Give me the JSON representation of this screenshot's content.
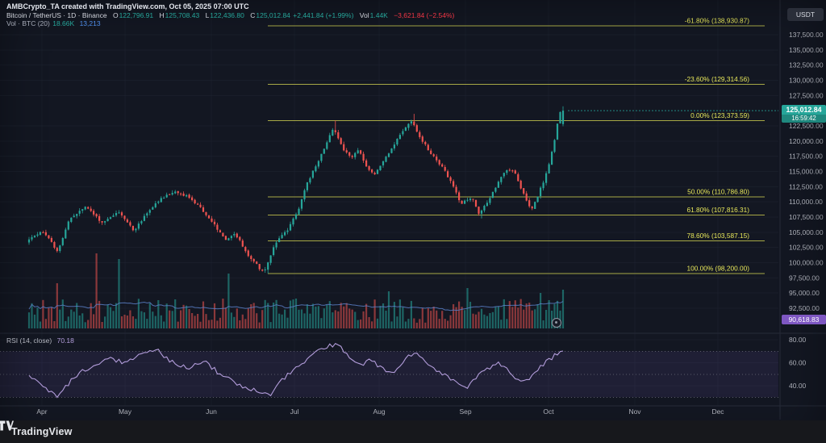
{
  "header": {
    "watermark_line": "AMBCrypto_TA created with TradingView.com, Oct 05, 2025 07:00 UTC",
    "symbol_title": "Bitcoin / TetherUS · 1D · Binance",
    "ohlc": {
      "o_label": "O",
      "o": "122,796.91",
      "h_label": "H",
      "h": "125,708.43",
      "l_label": "L",
      "l": "122,436.80",
      "c_label": "C",
      "c": "125,012.84",
      "change": "+2,441.84 (+1.99%)"
    },
    "vol_label": "Vol",
    "vol_value": "1.44K",
    "vol_change": "−3,621.84 (−2.54%)",
    "volume_indicator_line": {
      "label": "Vol · BTC (20)",
      "value1": "18.66K",
      "value2": "13,213"
    }
  },
  "price_scale": {
    "currency_button": "USDT",
    "ticks": [
      {
        "label": "137,500.00",
        "value": 137500
      },
      {
        "label": "135,000.00",
        "value": 135000
      },
      {
        "label": "132,500.00",
        "value": 132500
      },
      {
        "label": "130,000.00",
        "value": 130000
      },
      {
        "label": "127,500.00",
        "value": 127500
      },
      {
        "label": "122,500.00",
        "value": 122500
      },
      {
        "label": "120,000.00",
        "value": 120000
      },
      {
        "label": "117,500.00",
        "value": 117500
      },
      {
        "label": "115,000.00",
        "value": 115000
      },
      {
        "label": "112,500.00",
        "value": 112500
      },
      {
        "label": "110,000.00",
        "value": 110000
      },
      {
        "label": "107,500.00",
        "value": 107500
      },
      {
        "label": "105,000.00",
        "value": 105000
      },
      {
        "label": "102,500.00",
        "value": 102500
      },
      {
        "label": "100,000.00",
        "value": 100000
      },
      {
        "label": "97,500.00",
        "value": 97500
      },
      {
        "label": "95,000.00",
        "value": 95000
      },
      {
        "label": "92,500.00",
        "value": 92500
      }
    ],
    "last_price_badge": {
      "price": "125,012.84",
      "countdown": "16:59:42",
      "color": "#26a69a"
    },
    "indicator_badge": {
      "value": "90,618.83",
      "color": "#7e57c2"
    }
  },
  "rsi_pane": {
    "legend_label": "RSI (14, close)",
    "legend_value": "70.18",
    "ticks": [
      {
        "label": "80.00",
        "value": 80
      },
      {
        "label": "60.00",
        "value": 60
      },
      {
        "label": "40.00",
        "value": 40
      }
    ]
  },
  "time_axis": {
    "months": [
      "Apr",
      "May",
      "Jun",
      "Jul",
      "Aug",
      "Sep",
      "Oct",
      "Nov",
      "Dec"
    ]
  },
  "footer": {
    "brand": "TradingView"
  },
  "chart_data": {
    "type": "candlestick",
    "title": "Bitcoin / TetherUS 1D (Binance) with Fibonacci retracement, volume and RSI",
    "price_axis": {
      "min": 90000,
      "max": 139500,
      "tick_step": 2500,
      "currency": "USDT"
    },
    "last_price": 125012.84,
    "last_candle": {
      "o": 122796.91,
      "h": 125708.43,
      "l": 122436.8,
      "c": 125012.84
    },
    "fib_retracement": [
      {
        "level": -0.618,
        "price": 138930.87,
        "label": "-61.80% (138,930.87)"
      },
      {
        "level": -0.236,
        "price": 129314.56,
        "label": "-23.60% (129,314.56)"
      },
      {
        "level": 0.0,
        "price": 123373.59,
        "label": "0.00% (123,373.59)"
      },
      {
        "level": 0.5,
        "price": 110786.8,
        "label": "50.00% (110,786.80)"
      },
      {
        "level": 0.618,
        "price": 107816.31,
        "label": "61.80% (107,816.31)"
      },
      {
        "level": 0.786,
        "price": 103587.15,
        "label": "78.60% (103,587.15)"
      },
      {
        "level": 1.0,
        "price": 98200.0,
        "label": "100.00% (98,200.00)"
      }
    ],
    "price_waypoints": [
      [
        0,
        103400
      ],
      [
        0.029,
        105300
      ],
      [
        0.059,
        101900
      ],
      [
        0.082,
        107300
      ],
      [
        0.112,
        109200
      ],
      [
        0.142,
        106600
      ],
      [
        0.172,
        108400
      ],
      [
        0.202,
        105300
      ],
      [
        0.233,
        108900
      ],
      [
        0.255,
        110600
      ],
      [
        0.278,
        111700
      ],
      [
        0.301,
        110900
      ],
      [
        0.323,
        109300
      ],
      [
        0.346,
        107000
      ],
      [
        0.373,
        103600
      ],
      [
        0.391,
        104900
      ],
      [
        0.414,
        101300
      ],
      [
        0.437,
        99100
      ],
      [
        0.447,
        98600
      ],
      [
        0.467,
        103300
      ],
      [
        0.489,
        105300
      ],
      [
        0.508,
        108400
      ],
      [
        0.527,
        113300
      ],
      [
        0.547,
        116600
      ],
      [
        0.565,
        120300
      ],
      [
        0.576,
        122200
      ],
      [
        0.592,
        119000
      ],
      [
        0.607,
        117200
      ],
      [
        0.622,
        118500
      ],
      [
        0.638,
        115600
      ],
      [
        0.653,
        114500
      ],
      [
        0.668,
        116650
      ],
      [
        0.686,
        119050
      ],
      [
        0.704,
        121570
      ],
      [
        0.722,
        123300
      ],
      [
        0.739,
        120380
      ],
      [
        0.758,
        117990
      ],
      [
        0.777,
        116000
      ],
      [
        0.795,
        113340
      ],
      [
        0.814,
        109760
      ],
      [
        0.834,
        110820
      ],
      [
        0.849,
        107900
      ],
      [
        0.864,
        110020
      ],
      [
        0.882,
        112940
      ],
      [
        0.9,
        115330
      ],
      [
        0.915,
        114800
      ],
      [
        0.93,
        111620
      ],
      [
        0.946,
        108700
      ],
      [
        0.961,
        111620
      ],
      [
        0.976,
        115070
      ],
      [
        0.988,
        119580
      ],
      [
        0.995,
        123030
      ],
      [
        1,
        124800
      ]
    ],
    "key_extremes": [
      {
        "t": 0.447,
        "low": 98200
      },
      {
        "t": 0.576,
        "high": 123373.59
      },
      {
        "t": 0.722,
        "high": 124474
      },
      {
        "t": 0.849,
        "low": 107270
      }
    ],
    "rsi": {
      "last": 70.18,
      "bands": [
        70,
        50,
        30
      ],
      "waypoints": [
        [
          0,
          48
        ],
        [
          0.03,
          40
        ],
        [
          0.05,
          30
        ],
        [
          0.09,
          50
        ],
        [
          0.12,
          57
        ],
        [
          0.15,
          64
        ],
        [
          0.18,
          60
        ],
        [
          0.21,
          67
        ],
        [
          0.24,
          71
        ],
        [
          0.27,
          60
        ],
        [
          0.3,
          56
        ],
        [
          0.33,
          61
        ],
        [
          0.36,
          49
        ],
        [
          0.4,
          39
        ],
        [
          0.43,
          36
        ],
        [
          0.45,
          31
        ],
        [
          0.47,
          44
        ],
        [
          0.5,
          55
        ],
        [
          0.53,
          67
        ],
        [
          0.56,
          74
        ],
        [
          0.58,
          77
        ],
        [
          0.6,
          64
        ],
        [
          0.62,
          58
        ],
        [
          0.64,
          62
        ],
        [
          0.66,
          55
        ],
        [
          0.68,
          51
        ],
        [
          0.7,
          60
        ],
        [
          0.72,
          69
        ],
        [
          0.74,
          61
        ],
        [
          0.76,
          55
        ],
        [
          0.78,
          49
        ],
        [
          0.8,
          43
        ],
        [
          0.82,
          38
        ],
        [
          0.84,
          48
        ],
        [
          0.86,
          55
        ],
        [
          0.88,
          60
        ],
        [
          0.9,
          53
        ],
        [
          0.92,
          43
        ],
        [
          0.94,
          48
        ],
        [
          0.96,
          57
        ],
        [
          0.98,
          65
        ],
        [
          1,
          70.18
        ]
      ]
    },
    "volume_spikes": [
      {
        "t": 0.05,
        "h": 56
      },
      {
        "t": 0.127,
        "h": 93
      },
      {
        "t": 0.171,
        "h": 86
      },
      {
        "t": 0.373,
        "h": 68
      },
      {
        "t": 0.675,
        "h": 46
      },
      {
        "t": 0.82,
        "h": 50
      },
      {
        "t": 0.96,
        "h": 44
      },
      {
        "t": 1,
        "h": 40
      }
    ],
    "colors": {
      "bg": "#131722",
      "up": "#26a69a",
      "down": "#ef5350",
      "vol_up": "rgba(38,166,154,0.55)",
      "vol_down": "rgba(239,83,80,0.55)",
      "vol_ma": "#5b7fc7",
      "fib_line": "#b8b84a",
      "fib_label": "#e7e75a",
      "rsi_line": "#b39ddb",
      "rsi_fill": "rgba(126,87,194,0.12)",
      "accent_teal": "#26a69a",
      "accent_purple": "#7e57c2",
      "text": "#b2b5be"
    },
    "legend_position": "top-left",
    "grid": true
  }
}
